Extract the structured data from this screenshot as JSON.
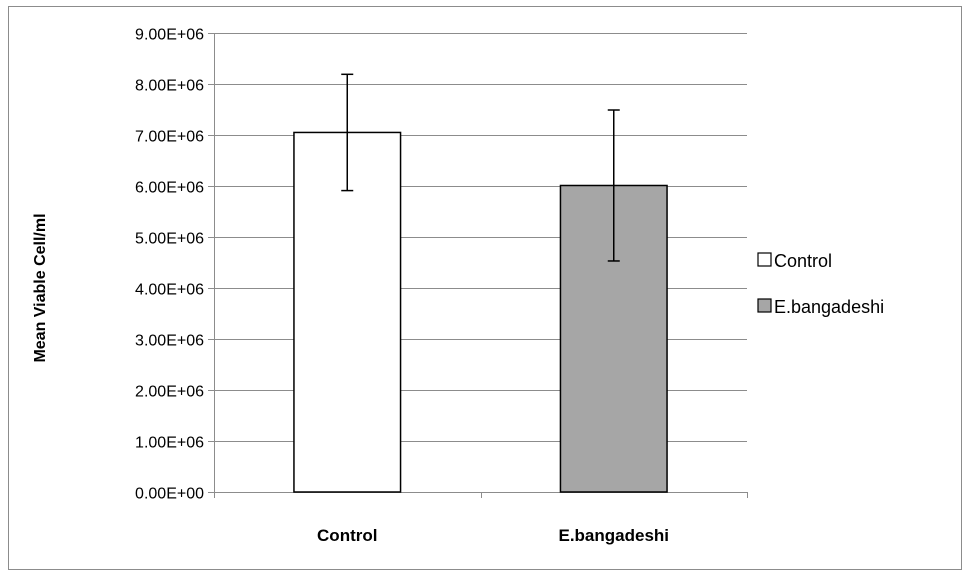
{
  "chart_data": {
    "type": "bar",
    "title": "",
    "xlabel": "",
    "ylabel": "Mean Viable Cell/ml",
    "categories": [
      "Control",
      "E.bangadeshi"
    ],
    "values": [
      7050000,
      6010000
    ],
    "error": [
      1140000,
      1480000
    ],
    "colors": [
      "#ffffff",
      "#a6a6a6"
    ],
    "ylim": [
      0,
      9000000
    ],
    "ytick_step": 1000000,
    "ytick_labels": [
      "0.00E+00",
      "1.00E+06",
      "2.00E+06",
      "3.00E+06",
      "4.00E+06",
      "5.00E+06",
      "6.00E+06",
      "7.00E+06",
      "8.00E+06",
      "9.00E+06"
    ],
    "grid": true,
    "legend": {
      "position": "right",
      "entries": [
        {
          "label": "Control",
          "color": "#ffffff"
        },
        {
          "label": "E.bangadeshi",
          "color": "#a6a6a6"
        }
      ]
    }
  }
}
